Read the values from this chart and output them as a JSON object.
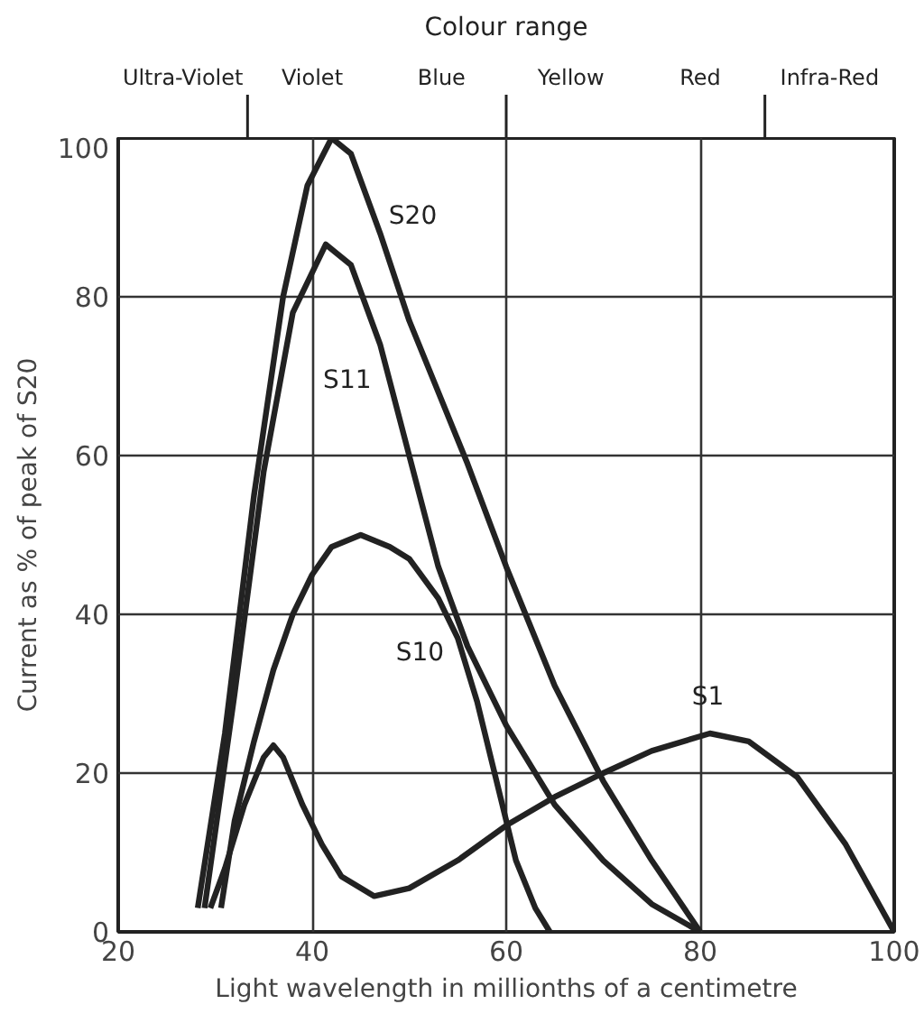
{
  "chart_data": [
    {
      "type": "other",
      "title": "Colour range",
      "annotations": [
        "Ultra-Violet",
        "Violet",
        "Blue",
        "Yellow",
        "Red",
        "Infra-Red"
      ]
    },
    {
      "type": "line",
      "xlabel": "Light wavelength in millionths of a centimetre",
      "ylabel": "Current as % of peak of S20",
      "xlim": [
        20,
        100
      ],
      "ylim": [
        0,
        100
      ],
      "xticks": [
        20,
        40,
        60,
        80,
        100
      ],
      "yticks": [
        0,
        20,
        40,
        60,
        80,
        100
      ],
      "grid": true,
      "marker": "none",
      "line_style": "solid",
      "series": [
        {
          "name": "S20",
          "color": "#222222",
          "x": [
            28.2,
            31,
            34,
            37,
            39.5,
            42,
            44,
            47,
            50,
            53,
            56,
            60,
            65,
            70,
            75,
            80
          ],
          "values": [
            3,
            25,
            55,
            80,
            94,
            100,
            98,
            88,
            77,
            68,
            59,
            46,
            31,
            19,
            9,
            0
          ]
        },
        {
          "name": "S11",
          "color": "#222222",
          "x": [
            28.9,
            32,
            35,
            38,
            41.4,
            44,
            47,
            50,
            53,
            56,
            60,
            65,
            70,
            75,
            80
          ],
          "values": [
            3,
            30,
            58,
            78,
            86.6,
            84,
            74,
            60,
            46,
            36,
            26,
            16,
            9,
            3.5,
            0
          ]
        },
        {
          "name": "S10",
          "color": "#222222",
          "x": [
            30.6,
            32,
            34,
            36,
            38,
            40,
            42,
            45,
            48,
            50,
            53,
            55,
            57,
            59,
            61,
            63,
            64.5
          ],
          "values": [
            3,
            14,
            24,
            33,
            40,
            45,
            48.5,
            50,
            48.5,
            47,
            42,
            37,
            29,
            19,
            9,
            3,
            0
          ]
        },
        {
          "name": "S1",
          "color": "#222222",
          "x": [
            29.5,
            31,
            33,
            35,
            36,
            37,
            39,
            41,
            43,
            46.4,
            50,
            55,
            60,
            65,
            70,
            75,
            81,
            85,
            90,
            95,
            100
          ],
          "values": [
            3,
            8,
            16,
            22,
            23.5,
            22,
            16,
            11,
            7,
            4.5,
            5.5,
            9,
            13.4,
            17,
            20,
            22.8,
            25,
            24,
            19.5,
            11,
            0
          ]
        }
      ]
    }
  ]
}
